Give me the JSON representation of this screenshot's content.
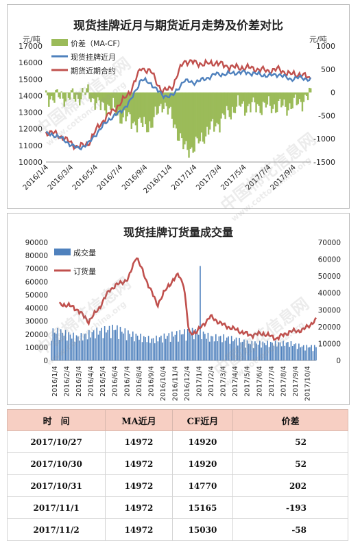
{
  "chart1": {
    "title": "现货挂牌近月与期货近月走势及价差对比",
    "ylabel_left": "元/吨",
    "ylabel_right": "元/吨",
    "y_left_ticks": [
      "10000",
      "11000",
      "12000",
      "13000",
      "14000",
      "15000",
      "16000",
      "17000"
    ],
    "y_right_ticks": [
      "-1500",
      "-1000",
      "-500",
      "0",
      "500",
      "1000"
    ],
    "x_ticks": [
      "2016/1/4",
      "2016/3/4",
      "2016/5/4",
      "2016/7/4",
      "2016/9/4",
      "2016/11/4",
      "2017/1/4",
      "2017/3/4",
      "2017/5/4",
      "2017/7/4",
      "2017/9/4"
    ],
    "legend": [
      "价差（MA-CF）",
      "现货挂牌近月",
      "期货近期合约"
    ],
    "colors": {
      "spread": "#9bbb59",
      "spot": "#4f81bd",
      "futures": "#c0504d"
    }
  },
  "chart2": {
    "title": "现货挂牌订货量成交量",
    "y_left_ticks": [
      "0",
      "10000",
      "20000",
      "30000",
      "40000",
      "50000",
      "60000",
      "70000",
      "80000",
      "90000"
    ],
    "y_right_ticks": [
      "0",
      "10000",
      "20000",
      "30000",
      "40000",
      "50000",
      "60000",
      "70000"
    ],
    "x_ticks": [
      "2016/1/4",
      "2016/2/4",
      "2016/3/4",
      "2016/4/4",
      "2016/5/4",
      "2016/6/4",
      "2016/7/4",
      "2016/8/4",
      "2016/9/4",
      "2016/10/4",
      "2016/11/4",
      "2016/12/4",
      "2017/1/4",
      "2017/2/4",
      "2017/3/4",
      "2017/4/4",
      "2017/5/4",
      "2017/6/4",
      "2017/7/4",
      "2017/8/4",
      "2017/9/4",
      "2017/10/4"
    ],
    "legend": [
      "成交量",
      "订货量"
    ],
    "colors": {
      "volume": "#4f81bd",
      "orders": "#c0504d"
    }
  },
  "chart_data": [
    {
      "type": "line",
      "title": "现货挂牌近月与期货近月走势及价差对比",
      "ylabel": "元/吨",
      "ylim": [
        10000,
        17000
      ],
      "y2lim": [
        -1500,
        1000
      ],
      "x_range": [
        "2016/1/4",
        "2017/11/2"
      ],
      "series": [
        {
          "name": "现货挂牌近月",
          "axis": "left",
          "x_frac": [
            0.0,
            0.04,
            0.08,
            0.12,
            0.16,
            0.2,
            0.24,
            0.28,
            0.32,
            0.36,
            0.4,
            0.44,
            0.48,
            0.52,
            0.56,
            0.6,
            0.64,
            0.68,
            0.72,
            0.76,
            0.8,
            0.84,
            0.88,
            0.92,
            0.96,
            1.0
          ],
          "values": [
            11700,
            11600,
            11200,
            10800,
            11100,
            11900,
            12600,
            13000,
            13700,
            15000,
            14700,
            14000,
            14000,
            14900,
            14800,
            15000,
            15300,
            15300,
            15400,
            15400,
            15300,
            15200,
            15300,
            15000,
            15100,
            14972
          ]
        },
        {
          "name": "期货近期合约",
          "axis": "left",
          "x_frac": [
            0.0,
            0.04,
            0.08,
            0.12,
            0.16,
            0.2,
            0.24,
            0.28,
            0.32,
            0.36,
            0.4,
            0.44,
            0.48,
            0.52,
            0.56,
            0.6,
            0.64,
            0.68,
            0.72,
            0.76,
            0.8,
            0.84,
            0.88,
            0.92,
            0.96,
            1.0
          ],
          "values": [
            11800,
            11700,
            11300,
            10900,
            11100,
            12200,
            12900,
            13500,
            14300,
            15700,
            15400,
            14200,
            14600,
            16100,
            16000,
            15900,
            16000,
            15800,
            15700,
            15700,
            15600,
            15500,
            15600,
            15300,
            15300,
            15030
          ]
        },
        {
          "name": "价差（MA-CF）",
          "type": "area",
          "axis": "right",
          "x_frac": [
            0.0,
            0.04,
            0.08,
            0.12,
            0.16,
            0.2,
            0.24,
            0.28,
            0.32,
            0.36,
            0.4,
            0.44,
            0.48,
            0.52,
            0.56,
            0.6,
            0.64,
            0.68,
            0.72,
            0.76,
            0.8,
            0.84,
            0.88,
            0.92,
            0.96,
            1.0
          ],
          "values": [
            -100,
            -100,
            -100,
            -100,
            0,
            -300,
            -300,
            -500,
            -600,
            -700,
            -700,
            -200,
            -600,
            -1200,
            -1200,
            -900,
            -700,
            -500,
            -300,
            -300,
            -300,
            -300,
            -300,
            -300,
            -200,
            -58
          ]
        }
      ]
    },
    {
      "type": "bar",
      "title": "现货挂牌订货量成交量",
      "ylim": [
        0,
        90000
      ],
      "y2lim": [
        0,
        70000
      ],
      "x_range": [
        "2016/1/4",
        "2017/11/2"
      ],
      "series": [
        {
          "name": "成交量",
          "axis": "left",
          "type": "bar",
          "x_frac": [
            0.03,
            0.1,
            0.17,
            0.24,
            0.31,
            0.38,
            0.45,
            0.52,
            0.56,
            0.6,
            0.65,
            0.7,
            0.75,
            0.8,
            0.85,
            0.9,
            0.95,
            1.0
          ],
          "values": [
            25000,
            20000,
            25000,
            28000,
            22000,
            18000,
            22000,
            25000,
            25000,
            20000,
            20000,
            18000,
            15000,
            15000,
            15000,
            15000,
            12000,
            12000
          ]
        },
        {
          "name": "订货量",
          "axis": "right",
          "type": "line",
          "x_frac": [
            0.03,
            0.06,
            0.1,
            0.14,
            0.18,
            0.22,
            0.26,
            0.29,
            0.32,
            0.36,
            0.4,
            0.44,
            0.48,
            0.5,
            0.52,
            0.55,
            0.6,
            0.65,
            0.7,
            0.75,
            0.8,
            0.85,
            0.9,
            0.95,
            1.0
          ],
          "values": [
            33000,
            33000,
            30000,
            23000,
            31000,
            42000,
            46000,
            48000,
            62000,
            47000,
            33000,
            44000,
            51000,
            45000,
            16000,
            17000,
            26000,
            21000,
            18000,
            15000,
            16000,
            13000,
            17000,
            18000,
            24000
          ]
        }
      ]
    }
  ],
  "table": {
    "headers": [
      "时　间",
      "MA近月",
      "CF近月",
      "价差"
    ],
    "rows": [
      [
        "2017/10/27",
        "14972",
        "14920",
        "52"
      ],
      [
        "2017/10/30",
        "14972",
        "14920",
        "52"
      ],
      [
        "2017/10/31",
        "14972",
        "14770",
        "202"
      ],
      [
        "2017/11/1",
        "14972",
        "15165",
        "-193"
      ],
      [
        "2017/11/2",
        "14972",
        "15030",
        "-58"
      ]
    ]
  },
  "watermark": {
    "text": "中国棉花信息网",
    "url": "www.cottonchina.org"
  }
}
